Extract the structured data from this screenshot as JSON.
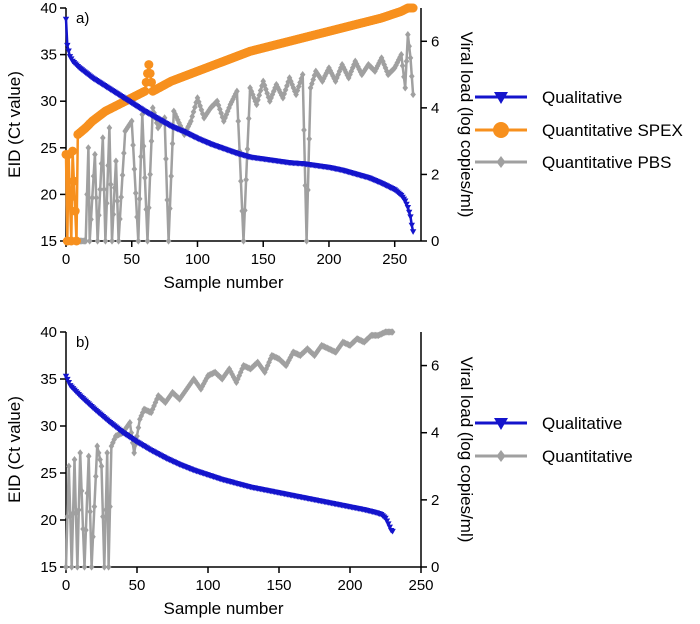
{
  "chart_data": [
    {
      "type": "line",
      "panel_label": "a)",
      "xlabel": "Sample number",
      "ylabel": "EID (Ct value)",
      "y2label": "Viral load (log copies/ml)",
      "xlim": [
        0,
        270
      ],
      "ylim": [
        15,
        40
      ],
      "y2lim": [
        0,
        7
      ],
      "xticks": [
        0,
        50,
        100,
        150,
        200,
        250
      ],
      "yticks": [
        15,
        20,
        25,
        30,
        35,
        40
      ],
      "y2ticks": [
        0,
        2,
        4,
        6
      ],
      "n_samples": 264,
      "series": [
        {
          "name": "Qualitative",
          "axis": "left",
          "color": "#1414cc",
          "marker": "triangle-down",
          "points": [
            [
              0,
              38.8
            ],
            [
              1,
              36.0
            ],
            [
              3,
              34.8
            ],
            [
              5,
              34.3
            ],
            [
              10,
              33.6
            ],
            [
              20,
              32.5
            ],
            [
              30,
              31.6
            ],
            [
              40,
              30.7
            ],
            [
              50,
              29.8
            ],
            [
              60,
              28.9
            ],
            [
              70,
              28.1
            ],
            [
              80,
              27.3
            ],
            [
              90,
              26.7
            ],
            [
              100,
              26.0
            ],
            [
              110,
              25.4
            ],
            [
              120,
              24.9
            ],
            [
              130,
              24.4
            ],
            [
              140,
              24.0
            ],
            [
              150,
              23.8
            ],
            [
              160,
              23.6
            ],
            [
              170,
              23.4
            ],
            [
              180,
              23.3
            ],
            [
              190,
              23.1
            ],
            [
              200,
              22.9
            ],
            [
              210,
              22.6
            ],
            [
              220,
              22.2
            ],
            [
              230,
              21.8
            ],
            [
              240,
              21.2
            ],
            [
              250,
              20.5
            ],
            [
              255,
              19.9
            ],
            [
              258,
              19.3
            ],
            [
              260,
              18.6
            ],
            [
              262,
              17.6
            ],
            [
              263,
              16.7
            ],
            [
              264,
              16.0
            ]
          ]
        },
        {
          "name": "Quantitative SPEX",
          "axis": "right",
          "color": "#f7901e",
          "marker": "circle",
          "points": [
            [
              0,
              2.6
            ],
            [
              1,
              0
            ],
            [
              2,
              2.6
            ],
            [
              4,
              0
            ],
            [
              5,
              2.7
            ],
            [
              8,
              0
            ],
            [
              9,
              3.2
            ],
            [
              15,
              3.4
            ],
            [
              20,
              3.6
            ],
            [
              30,
              3.9
            ],
            [
              40,
              4.1
            ],
            [
              50,
              4.3
            ],
            [
              60,
              4.5
            ],
            [
              63,
              5.3
            ],
            [
              66,
              4.5
            ],
            [
              80,
              4.8
            ],
            [
              100,
              5.1
            ],
            [
              120,
              5.4
            ],
            [
              140,
              5.7
            ],
            [
              160,
              5.9
            ],
            [
              180,
              6.1
            ],
            [
              200,
              6.3
            ],
            [
              220,
              6.5
            ],
            [
              240,
              6.7
            ],
            [
              255,
              6.9
            ],
            [
              260,
              7.0
            ],
            [
              264,
              7.0
            ]
          ]
        },
        {
          "name": "Quantitative PBS",
          "axis": "right",
          "color": "#a0a0a0",
          "marker": "diamond",
          "points": [
            [
              0,
              0
            ],
            [
              5,
              0
            ],
            [
              15,
              0
            ],
            [
              17,
              2.8
            ],
            [
              18,
              0
            ],
            [
              22,
              2.6
            ],
            [
              24,
              0
            ],
            [
              28,
              3.1
            ],
            [
              30,
              0
            ],
            [
              33,
              3.4
            ],
            [
              35,
              0
            ],
            [
              38,
              2.4
            ],
            [
              40,
              0
            ],
            [
              45,
              3.3
            ],
            [
              50,
              3.6
            ],
            [
              55,
              0
            ],
            [
              58,
              3.8
            ],
            [
              62,
              0
            ],
            [
              66,
              4.0
            ],
            [
              70,
              3.4
            ],
            [
              75,
              3.7
            ],
            [
              78,
              0
            ],
            [
              82,
              3.9
            ],
            [
              90,
              3.2
            ],
            [
              95,
              3.6
            ],
            [
              100,
              4.3
            ],
            [
              105,
              3.7
            ],
            [
              110,
              4.0
            ],
            [
              115,
              4.2
            ],
            [
              120,
              3.6
            ],
            [
              125,
              4.1
            ],
            [
              130,
              4.5
            ],
            [
              135,
              0
            ],
            [
              140,
              4.6
            ],
            [
              145,
              4.1
            ],
            [
              150,
              4.8
            ],
            [
              155,
              4.2
            ],
            [
              160,
              4.7
            ],
            [
              165,
              4.3
            ],
            [
              170,
              4.9
            ],
            [
              175,
              4.4
            ],
            [
              180,
              5.0
            ],
            [
              183,
              0
            ],
            [
              186,
              4.6
            ],
            [
              190,
              5.1
            ],
            [
              195,
              4.8
            ],
            [
              200,
              5.2
            ],
            [
              205,
              4.8
            ],
            [
              210,
              5.3
            ],
            [
              215,
              4.9
            ],
            [
              220,
              5.4
            ],
            [
              225,
              5.0
            ],
            [
              230,
              5.3
            ],
            [
              235,
              5.1
            ],
            [
              240,
              5.5
            ],
            [
              245,
              5.0
            ],
            [
              250,
              5.2
            ],
            [
              255,
              5.6
            ],
            [
              258,
              4.6
            ],
            [
              260,
              6.2
            ],
            [
              262,
              5.5
            ],
            [
              264,
              4.4
            ]
          ]
        }
      ]
    },
    {
      "type": "line",
      "panel_label": "b)",
      "xlabel": "Sample number",
      "ylabel": "EID (Ct value)",
      "y2label": "Viral load (log copies/ml)",
      "xlim": [
        0,
        250
      ],
      "ylim": [
        15,
        40
      ],
      "y2lim": [
        0,
        7
      ],
      "xticks": [
        0,
        50,
        100,
        150,
        200,
        250
      ],
      "yticks": [
        15,
        20,
        25,
        30,
        35,
        40
      ],
      "y2ticks": [
        0,
        2,
        4,
        6
      ],
      "n_samples": 230,
      "series": [
        {
          "name": "Qualitative",
          "axis": "left",
          "color": "#1414cc",
          "marker": "triangle-down",
          "points": [
            [
              0,
              35.3
            ],
            [
              3,
              34.3
            ],
            [
              10,
              33.2
            ],
            [
              20,
              31.8
            ],
            [
              30,
              30.5
            ],
            [
              40,
              29.3
            ],
            [
              50,
              28.3
            ],
            [
              60,
              27.4
            ],
            [
              70,
              26.6
            ],
            [
              80,
              25.9
            ],
            [
              90,
              25.3
            ],
            [
              100,
              24.8
            ],
            [
              110,
              24.3
            ],
            [
              120,
              23.9
            ],
            [
              130,
              23.5
            ],
            [
              140,
              23.2
            ],
            [
              150,
              22.9
            ],
            [
              160,
              22.6
            ],
            [
              170,
              22.3
            ],
            [
              180,
              22.0
            ],
            [
              190,
              21.7
            ],
            [
              200,
              21.4
            ],
            [
              210,
              21.1
            ],
            [
              218,
              20.8
            ],
            [
              222,
              20.6
            ],
            [
              225,
              20.2
            ],
            [
              227,
              19.6
            ],
            [
              229,
              18.9
            ],
            [
              230,
              18.8
            ]
          ]
        },
        {
          "name": "Quantitative",
          "axis": "right",
          "color": "#a0a0a0",
          "marker": "diamond",
          "points": [
            [
              0,
              0
            ],
            [
              2,
              3.0
            ],
            [
              4,
              0
            ],
            [
              6,
              3.2
            ],
            [
              8,
              0
            ],
            [
              10,
              3.4
            ],
            [
              13,
              0
            ],
            [
              16,
              3.3
            ],
            [
              18,
              0
            ],
            [
              22,
              3.6
            ],
            [
              25,
              3.0
            ],
            [
              27,
              0
            ],
            [
              29,
              3.4
            ],
            [
              30,
              0
            ],
            [
              32,
              3.6
            ],
            [
              35,
              3.9
            ],
            [
              40,
              4.0
            ],
            [
              45,
              4.3
            ],
            [
              48,
              3.4
            ],
            [
              52,
              4.4
            ],
            [
              55,
              4.7
            ],
            [
              60,
              4.6
            ],
            [
              65,
              5.1
            ],
            [
              70,
              4.9
            ],
            [
              75,
              5.2
            ],
            [
              80,
              5.0
            ],
            [
              85,
              5.3
            ],
            [
              90,
              5.6
            ],
            [
              95,
              5.3
            ],
            [
              100,
              5.7
            ],
            [
              105,
              5.8
            ],
            [
              110,
              5.6
            ],
            [
              115,
              5.9
            ],
            [
              120,
              5.5
            ],
            [
              125,
              6.0
            ],
            [
              130,
              5.9
            ],
            [
              135,
              6.1
            ],
            [
              140,
              5.8
            ],
            [
              145,
              6.3
            ],
            [
              150,
              6.2
            ],
            [
              155,
              6.0
            ],
            [
              160,
              6.4
            ],
            [
              165,
              6.3
            ],
            [
              170,
              6.5
            ],
            [
              175,
              6.3
            ],
            [
              180,
              6.6
            ],
            [
              185,
              6.5
            ],
            [
              190,
              6.4
            ],
            [
              195,
              6.7
            ],
            [
              200,
              6.6
            ],
            [
              205,
              6.8
            ],
            [
              210,
              6.7
            ],
            [
              215,
              6.9
            ],
            [
              220,
              6.9
            ],
            [
              225,
              7.0
            ],
            [
              230,
              7.0
            ]
          ]
        }
      ]
    }
  ]
}
